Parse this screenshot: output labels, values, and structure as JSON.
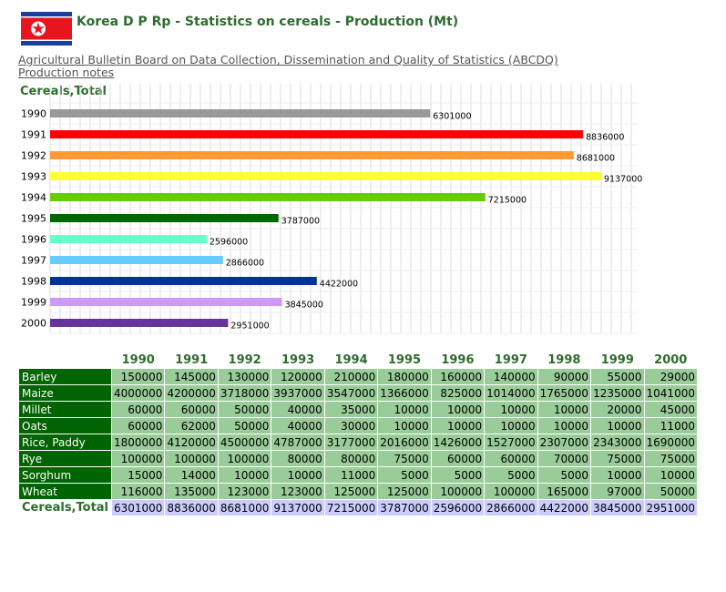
{
  "header": {
    "title": "Korea D P Rp - Statistics on cereals - Production (Mt)",
    "flag_icon": "north-korea-flag-icon"
  },
  "links": {
    "bulletin": "Agricultural Bulletin Board on Data Collection, Dissemination and Quality of Statistics (ABCDQ)",
    "notes": "Production notes"
  },
  "chart_data": {
    "type": "bar",
    "orientation": "horizontal",
    "title": "Cereals,Total",
    "categories": [
      "1990",
      "1991",
      "1992",
      "1993",
      "1994",
      "1995",
      "1996",
      "1997",
      "1998",
      "1999",
      "2000"
    ],
    "values": [
      6301000,
      8836000,
      8681000,
      9137000,
      7215000,
      3787000,
      2596000,
      2866000,
      4422000,
      3845000,
      2951000
    ],
    "colors": [
      "#999999",
      "#ff0000",
      "#ff9933",
      "#ffff33",
      "#66cc00",
      "#006600",
      "#66ffcc",
      "#66ccff",
      "#003399",
      "#cc99ff",
      "#663399"
    ],
    "xlim": [
      0,
      9500000
    ],
    "grid": true,
    "data_labels": true
  },
  "table": {
    "years": [
      "1990",
      "1991",
      "1992",
      "1993",
      "1994",
      "1995",
      "1996",
      "1997",
      "1998",
      "1999",
      "2000"
    ],
    "rows": [
      {
        "label": "Barley",
        "values": [
          "150000",
          "145000",
          "130000",
          "120000",
          "210000",
          "180000",
          "160000",
          "140000",
          "90000",
          "55000",
          "29000"
        ]
      },
      {
        "label": "Maize",
        "values": [
          "4000000",
          "4200000",
          "3718000",
          "3937000",
          "3547000",
          "1366000",
          "825000",
          "1014000",
          "1765000",
          "1235000",
          "1041000"
        ]
      },
      {
        "label": "Millet",
        "values": [
          "60000",
          "60000",
          "50000",
          "40000",
          "35000",
          "10000",
          "10000",
          "10000",
          "10000",
          "20000",
          "45000"
        ]
      },
      {
        "label": "Oats",
        "values": [
          "60000",
          "62000",
          "50000",
          "40000",
          "30000",
          "10000",
          "10000",
          "10000",
          "10000",
          "10000",
          "11000"
        ]
      },
      {
        "label": "Rice, Paddy",
        "values": [
          "1800000",
          "4120000",
          "4500000",
          "4787000",
          "3177000",
          "2016000",
          "1426000",
          "1527000",
          "2307000",
          "2343000",
          "1690000"
        ]
      },
      {
        "label": "Rye",
        "values": [
          "100000",
          "100000",
          "100000",
          "80000",
          "80000",
          "75000",
          "60000",
          "60000",
          "70000",
          "75000",
          "75000"
        ]
      },
      {
        "label": "Sorghum",
        "values": [
          "15000",
          "14000",
          "10000",
          "10000",
          "11000",
          "5000",
          "5000",
          "5000",
          "5000",
          "10000",
          "10000"
        ]
      },
      {
        "label": "Wheat",
        "values": [
          "116000",
          "135000",
          "123000",
          "123000",
          "125000",
          "125000",
          "100000",
          "100000",
          "165000",
          "97000",
          "50000"
        ]
      }
    ],
    "total": {
      "label": "Cereals,Total",
      "values": [
        "6301000",
        "8836000",
        "8681000",
        "9137000",
        "7215000",
        "3787000",
        "2596000",
        "2866000",
        "4422000",
        "3845000",
        "2951000"
      ]
    }
  }
}
